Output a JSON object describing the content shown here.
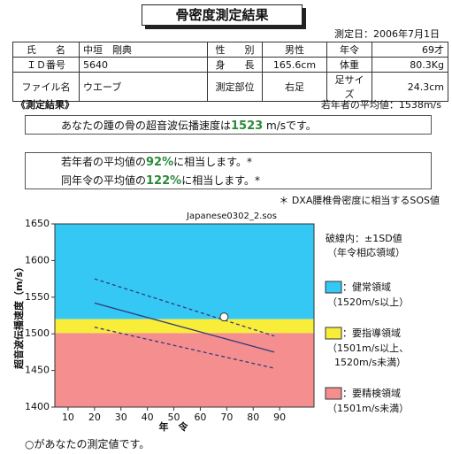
{
  "header": {
    "title": "骨密度測定結果",
    "date": "測定日：2006年7月1日"
  },
  "info_table": {
    "rows": [
      [
        "氏　　名",
        "中垣　剛典",
        "性　　別",
        "男性",
        "年令",
        "69才"
      ],
      [
        "ＩＤ番号",
        "5640",
        "身　　長",
        "165.6cm",
        "体重",
        "80.3Kg"
      ],
      [
        "ファイル名",
        "ウエーブ",
        "測定部位",
        "右足",
        "足サイズ",
        "24.3cm"
      ]
    ]
  },
  "results": {
    "heading": "《測定結果》",
    "young_mean": "若年者の平均値：1538m/s",
    "speed": {
      "prefix": "あなたの踵の骨の超音波伝播速度は",
      "value": "1523",
      "suffix": " m/sです。"
    },
    "comparisons": [
      {
        "prefix": "若年者の平均値の",
        "value": "92%",
        "suffix": "に相当します。*"
      },
      {
        "prefix": "同年令の平均値の",
        "value": "122%",
        "suffix": "に相当します。*"
      }
    ],
    "note": "＊ DXA腰椎骨密度に相当するSOS値"
  },
  "chart_data": {
    "type": "line",
    "title": "Japanese0302_2.sos",
    "y_label": "超音波伝播速度（m/s）",
    "x_label": "年　令",
    "xlim": [
      5,
      103
    ],
    "xticks": [
      10,
      20,
      30,
      40,
      50,
      60,
      70,
      80,
      90
    ],
    "ylim": [
      1400,
      1650
    ],
    "yticks": [
      1400,
      1450,
      1500,
      1550,
      1600,
      1650
    ],
    "bands": [
      {
        "from": 1520,
        "to": 1650,
        "color": "#35c8f4",
        "label": "：健常領域",
        "range_label": [
          "（1520m/s以上）"
        ]
      },
      {
        "from": 1501,
        "to": 1520,
        "color": "#f8ee3a",
        "label": "：要指導領域",
        "range_label": [
          "（1501m/s以上、",
          "1520m/s未満）"
        ]
      },
      {
        "from": 1400,
        "to": 1501,
        "color": "#f58f8f",
        "label": "：要精検領域",
        "range_label": [
          "（1501m/s未満）"
        ]
      }
    ],
    "legend_title": [
      "破線内：±1SD値",
      "（年令相応領域）"
    ],
    "x": [
      20,
      88
    ],
    "series": [
      {
        "style": "dashed",
        "color": "#333a7a",
        "values": [
          1575,
          1497
        ]
      },
      {
        "style": "solid",
        "color": "#333a7a",
        "values": [
          1542,
          1475
        ]
      },
      {
        "style": "dashed",
        "color": "#333a7a",
        "values": [
          1509,
          1453
        ]
      }
    ],
    "point": {
      "x": 69,
      "y": 1523
    }
  },
  "footer": "○があなたの測定値です。"
}
